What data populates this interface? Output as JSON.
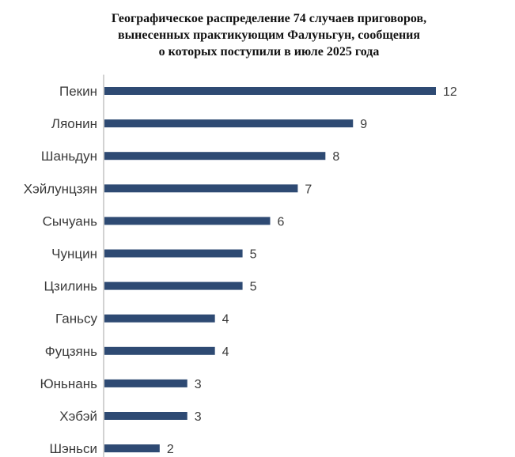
{
  "chart_data": {
    "type": "bar",
    "orientation": "horizontal",
    "title_lines": [
      "Географическое распределение 74 случаев приговоров,",
      "вынесенных практикующим Фалуньгун, сообщения",
      "о которых поступили в июле 2025 года"
    ],
    "categories": [
      "Пекин",
      "Ляонин",
      "Шаньдун",
      "Хэйлунцзян",
      "Сычуань",
      "Чунцин",
      "Цзилинь",
      "Ганьсу",
      "Фуцзянь",
      "Юньнань",
      "Хэбэй",
      "Шэньси"
    ],
    "values": [
      12,
      9,
      8,
      7,
      6,
      5,
      5,
      4,
      4,
      3,
      3,
      2
    ],
    "xlim": [
      0,
      12
    ],
    "grid": false,
    "data_labels": true,
    "bar_color": "#2e4a73",
    "axis_color": "#a6a6a6"
  }
}
